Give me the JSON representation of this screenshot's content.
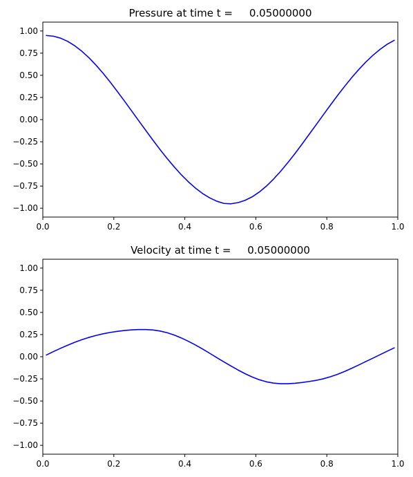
{
  "chart_data": [
    {
      "type": "line",
      "title": "Pressure at time t =     0.05000000",
      "xlabel": "",
      "ylabel": "",
      "xlim": [
        0.0,
        1.0
      ],
      "ylim": [
        -1.1,
        1.1
      ],
      "xticks": [
        0.0,
        0.2,
        0.4,
        0.6,
        0.8,
        1.0
      ],
      "xtick_labels": [
        "0.0",
        "0.2",
        "0.4",
        "0.6",
        "0.8",
        "1.0"
      ],
      "yticks": [
        1.0,
        0.75,
        0.5,
        0.25,
        0.0,
        -0.25,
        -0.5,
        -0.75,
        -1.0
      ],
      "ytick_labels": [
        "1.00",
        "0.75",
        "0.50",
        "0.25",
        "0.00",
        "−0.25",
        "−0.50",
        "−0.75",
        "−1.00"
      ],
      "grid": false,
      "series": [
        {
          "color": "#0000ff",
          "x": [
            0.01,
            0.03,
            0.05,
            0.07,
            0.09,
            0.11,
            0.13,
            0.15,
            0.17,
            0.19,
            0.21,
            0.23,
            0.25,
            0.27,
            0.29,
            0.31,
            0.33,
            0.35,
            0.37,
            0.39,
            0.41,
            0.43,
            0.45,
            0.47,
            0.49,
            0.51,
            0.53,
            0.55,
            0.57,
            0.59,
            0.61,
            0.63,
            0.65,
            0.67,
            0.69,
            0.71,
            0.73,
            0.75,
            0.77,
            0.79,
            0.81,
            0.83,
            0.85,
            0.87,
            0.89,
            0.91,
            0.93,
            0.95,
            0.97,
            0.99
          ],
          "y": [
            0.949,
            0.941,
            0.919,
            0.883,
            0.833,
            0.771,
            0.698,
            0.614,
            0.522,
            0.422,
            0.317,
            0.209,
            0.099,
            -0.012,
            -0.122,
            -0.231,
            -0.337,
            -0.438,
            -0.533,
            -0.622,
            -0.702,
            -0.773,
            -0.834,
            -0.883,
            -0.921,
            -0.946,
            -0.95,
            -0.937,
            -0.911,
            -0.871,
            -0.817,
            -0.75,
            -0.671,
            -0.583,
            -0.487,
            -0.385,
            -0.278,
            -0.168,
            -0.058,
            0.053,
            0.163,
            0.271,
            0.374,
            0.473,
            0.565,
            0.65,
            0.726,
            0.793,
            0.85,
            0.895
          ]
        }
      ]
    },
    {
      "type": "line",
      "title": "Velocity at time t =     0.05000000",
      "xlabel": "",
      "ylabel": "",
      "xlim": [
        0.0,
        1.0
      ],
      "ylim": [
        -1.1,
        1.1
      ],
      "xticks": [
        0.0,
        0.2,
        0.4,
        0.6,
        0.8,
        1.0
      ],
      "xtick_labels": [
        "0.0",
        "0.2",
        "0.4",
        "0.6",
        "0.8",
        "1.0"
      ],
      "yticks": [
        1.0,
        0.75,
        0.5,
        0.25,
        0.0,
        -0.25,
        -0.5,
        -0.75,
        -1.0
      ],
      "ytick_labels": [
        "1.00",
        "0.75",
        "0.50",
        "0.25",
        "0.00",
        "−0.25",
        "−0.50",
        "−0.75",
        "−1.00"
      ],
      "grid": false,
      "series": [
        {
          "color": "#0000ff",
          "x": [
            0.01,
            0.03,
            0.05,
            0.07,
            0.09,
            0.11,
            0.13,
            0.15,
            0.17,
            0.19,
            0.21,
            0.23,
            0.25,
            0.27,
            0.29,
            0.31,
            0.33,
            0.35,
            0.37,
            0.39,
            0.41,
            0.43,
            0.45,
            0.47,
            0.49,
            0.51,
            0.53,
            0.55,
            0.57,
            0.59,
            0.61,
            0.63,
            0.65,
            0.67,
            0.69,
            0.71,
            0.73,
            0.75,
            0.77,
            0.79,
            0.81,
            0.83,
            0.85,
            0.87,
            0.89,
            0.91,
            0.93,
            0.95,
            0.97,
            0.99
          ],
          "y": [
            0.019,
            0.058,
            0.095,
            0.13,
            0.163,
            0.192,
            0.218,
            0.24,
            0.259,
            0.274,
            0.286,
            0.296,
            0.303,
            0.307,
            0.307,
            0.302,
            0.29,
            0.271,
            0.245,
            0.212,
            0.174,
            0.132,
            0.087,
            0.039,
            -0.01,
            -0.058,
            -0.105,
            -0.15,
            -0.192,
            -0.229,
            -0.26,
            -0.283,
            -0.298,
            -0.305,
            -0.305,
            -0.3,
            -0.291,
            -0.28,
            -0.267,
            -0.249,
            -0.226,
            -0.199,
            -0.167,
            -0.131,
            -0.093,
            -0.054,
            -0.016,
            0.023,
            0.062,
            0.1
          ]
        }
      ]
    }
  ]
}
